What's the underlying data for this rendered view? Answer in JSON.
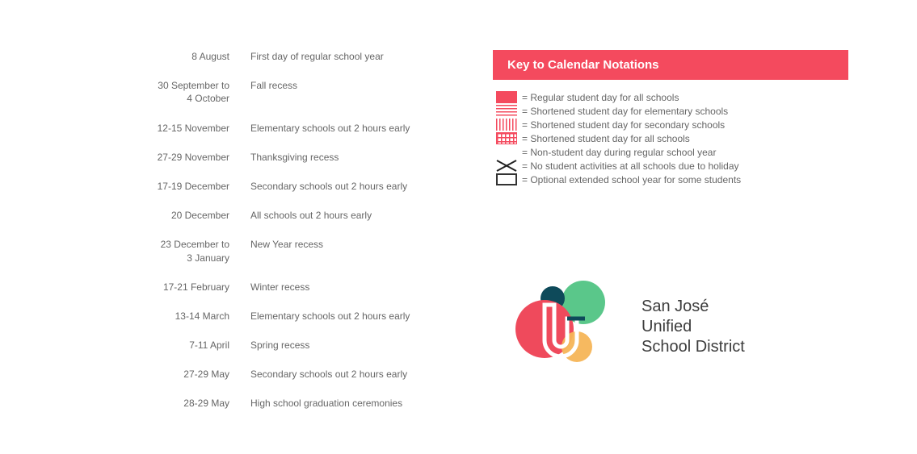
{
  "events": [
    {
      "date": "8 August",
      "desc": "First day of regular school year"
    },
    {
      "date": "30 September to\n4 October",
      "desc": "Fall recess"
    },
    {
      "date": "12-15 November",
      "desc": "Elementary schools out 2 hours early"
    },
    {
      "date": "27-29 November",
      "desc": "Thanksgiving recess"
    },
    {
      "date": "17-19 December",
      "desc": "Secondary schools out 2 hours early"
    },
    {
      "date": "20 December",
      "desc": "All schools out 2 hours early"
    },
    {
      "date": "23 December to\n3 January",
      "desc": "New Year recess"
    },
    {
      "date": "17-21 February",
      "desc": "Winter recess"
    },
    {
      "date": "13-14 March",
      "desc": "Elementary schools out 2 hours early"
    },
    {
      "date": "7-11 April",
      "desc": "Spring recess"
    },
    {
      "date": "27-29 May",
      "desc": "Secondary schools out 2 hours early"
    },
    {
      "date": "28-29 May",
      "desc": "High school graduation ceremonies"
    }
  ],
  "key": {
    "title": "Key to Calendar Notations",
    "header_bg": "#f44a5e",
    "header_fg": "#ffffff",
    "items": [
      {
        "swatch": "solid",
        "label": "= Regular student day for all schools"
      },
      {
        "swatch": "hlines",
        "label": "= Shortened student day for elementary schools"
      },
      {
        "swatch": "vlines",
        "label": "= Shortened student day for secondary schools"
      },
      {
        "swatch": "grid",
        "label": "= Shortened student day for all schools"
      },
      {
        "swatch": "empty",
        "label": "= Non-student day during regular school year"
      },
      {
        "swatch": "x",
        "label": "= No student activities at all schools due to holiday"
      },
      {
        "swatch": "outline",
        "label": "= Optional extended school year for some students"
      }
    ]
  },
  "logo": {
    "line1": "San José",
    "line2": "Unified",
    "line3": "School District",
    "colors": {
      "red": "#ef4a5c",
      "green": "#5ac78a",
      "darkteal": "#0e4a5a",
      "orange": "#f5b557",
      "text": "#3c3c3c"
    }
  },
  "styling": {
    "page_bg": "#ffffff",
    "text_color": "#666666",
    "font_size_body": 12,
    "font_size_key_title": 15,
    "font_size_logo": 20,
    "accent": "#f44a5e"
  }
}
